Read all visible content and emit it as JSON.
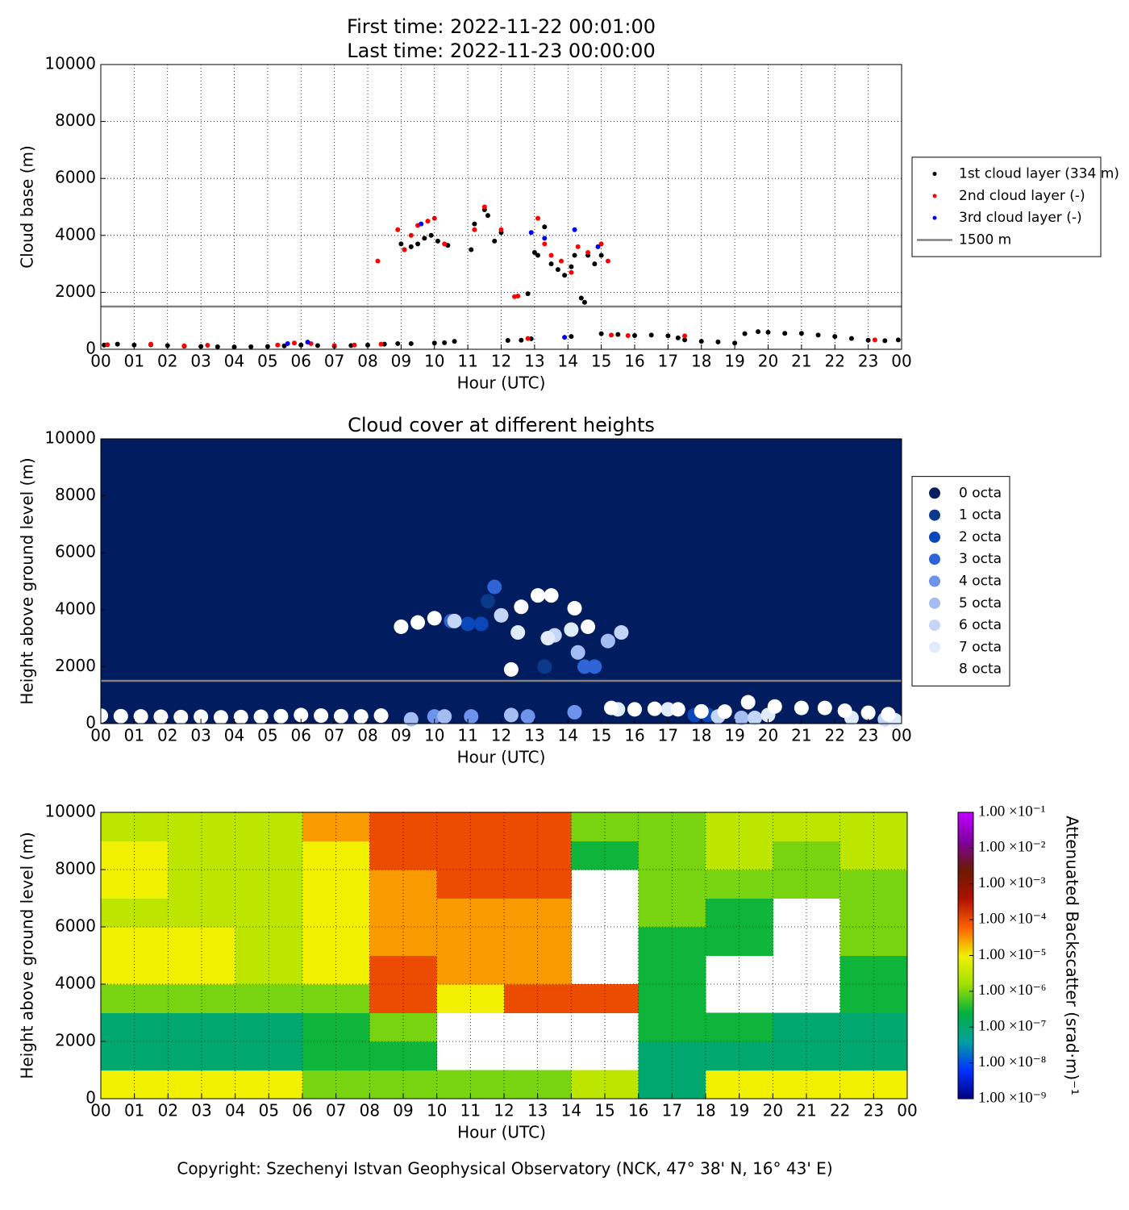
{
  "chart_data": [
    {
      "type": "scatter",
      "title": "First time: 2022-11-22 00:01:00",
      "subtitle": "Last time: 2022-11-23 00:00:00",
      "xlabel": "Hour (UTC)",
      "ylabel": "Cloud base (m)",
      "grid": true,
      "legend": "outside right",
      "background": "#ffffff",
      "xlim": [
        0,
        24
      ],
      "ylim": [
        0,
        10000
      ],
      "yticks": [
        0,
        2000,
        4000,
        6000,
        8000,
        10000
      ],
      "xticks": [
        {
          "value": 0,
          "label": "00"
        },
        {
          "value": 1,
          "label": "01"
        },
        {
          "value": 2,
          "label": "02"
        },
        {
          "value": 3,
          "label": "03"
        },
        {
          "value": 4,
          "label": "04"
        },
        {
          "value": 5,
          "label": "05"
        },
        {
          "value": 6,
          "label": "06"
        },
        {
          "value": 7,
          "label": "07"
        },
        {
          "value": 8,
          "label": "08"
        },
        {
          "value": 9,
          "label": "09"
        },
        {
          "value": 10,
          "label": "10"
        },
        {
          "value": 11,
          "label": "11"
        },
        {
          "value": 12,
          "label": "12"
        },
        {
          "value": 13,
          "label": "13"
        },
        {
          "value": 14,
          "label": "14"
        },
        {
          "value": 15,
          "label": "15"
        },
        {
          "value": 16,
          "label": "16"
        },
        {
          "value": 17,
          "label": "17"
        },
        {
          "value": 18,
          "label": "18"
        },
        {
          "value": 19,
          "label": "19"
        },
        {
          "value": 20,
          "label": "20"
        },
        {
          "value": 21,
          "label": "21"
        },
        {
          "value": 22,
          "label": "22"
        },
        {
          "value": 23,
          "label": "23"
        },
        {
          "value": 24,
          "label": "00"
        }
      ],
      "series": [
        {
          "name": "1st cloud layer (334 m)",
          "color": "#000000",
          "x": [
            0.1,
            0.5,
            1,
            1.5,
            2,
            2.5,
            3,
            3.5,
            4,
            4.5,
            5,
            5.5,
            6,
            6.5,
            7,
            7.5,
            8,
            8.5,
            8.9,
            9,
            9.1,
            9.3,
            9.5,
            9.7,
            9.9,
            10.1,
            10.4,
            9.3,
            10,
            10.3,
            10.6,
            11.1,
            11.2,
            11.5,
            11.6,
            11.8,
            12,
            12.2,
            12.6,
            12.9,
            12.8,
            13,
            13.1,
            13.3,
            13.5,
            13.7,
            13.9,
            14.1,
            14.2,
            14.4,
            14.5,
            14.6,
            14.8,
            15,
            14.1,
            15,
            15.5,
            16,
            16.5,
            17,
            17.3,
            17.5,
            18,
            18.5,
            19,
            19.3,
            19.7,
            20,
            20.5,
            21,
            21.5,
            22,
            22.5,
            23,
            23.5,
            23.9
          ],
          "values": [
            150,
            180,
            150,
            160,
            130,
            110,
            100,
            90,
            80,
            90,
            100,
            120,
            150,
            130,
            110,
            130,
            150,
            180,
            200,
            3700,
            3500,
            3600,
            3700,
            3900,
            4000,
            3800,
            3650,
            200,
            220,
            230,
            280,
            3500,
            4400,
            4900,
            4700,
            3800,
            4100,
            310,
            320,
            370,
            1950,
            3400,
            3300,
            4300,
            3000,
            2800,
            2600,
            2900,
            3300,
            1800,
            1650,
            3300,
            3000,
            3300,
            450,
            550,
            520,
            480,
            500,
            470,
            400,
            330,
            280,
            260,
            220,
            550,
            620,
            600,
            560,
            560,
            500,
            450,
            380,
            320,
            300,
            330
          ]
        },
        {
          "name": "2nd cloud layer (-)",
          "color": "#ff0000",
          "x": [
            0.2,
            1.5,
            2.5,
            3.2,
            5.3,
            5.8,
            6.3,
            7,
            7.6,
            8.3,
            8.4,
            8.9,
            9.1,
            9.3,
            9.5,
            9.8,
            10,
            10.3,
            11.2,
            11.5,
            12,
            12.4,
            12.5,
            12.8,
            13.1,
            13.3,
            13.5,
            13.8,
            14.1,
            14.3,
            14.6,
            15,
            15.2,
            15.3,
            15.8,
            17.5,
            23.2
          ],
          "values": [
            160,
            180,
            120,
            140,
            150,
            220,
            200,
            130,
            150,
            3100,
            180,
            4200,
            3500,
            4000,
            4350,
            4500,
            4600,
            3700,
            4200,
            5000,
            4200,
            1850,
            1870,
            380,
            4600,
            3700,
            3300,
            3100,
            2700,
            3600,
            3400,
            3700,
            3100,
            500,
            480,
            470,
            330
          ]
        },
        {
          "name": "3rd cloud layer (-)",
          "color": "#0000ff",
          "x": [
            5.6,
            6.2,
            9.6,
            12.9,
            13.3,
            13.9,
            14.2,
            14.9
          ],
          "values": [
            200,
            250,
            4400,
            4100,
            3900,
            420,
            4200,
            3600
          ]
        }
      ],
      "reference_line": {
        "name": "1500 m",
        "value": 1500,
        "color": "#808080"
      }
    },
    {
      "type": "scatter",
      "title": "Cloud cover at different heights",
      "xlabel": "Hour (UTC)",
      "ylabel": "Height above ground level (m)",
      "grid": false,
      "legend": "outside right",
      "background": "#021c60",
      "xlim": [
        0,
        24
      ],
      "ylim": [
        0,
        10000
      ],
      "yticks": [
        0,
        2000,
        4000,
        6000,
        8000,
        10000
      ],
      "xticks": [
        {
          "value": 0,
          "label": "00"
        },
        {
          "value": 1,
          "label": "01"
        },
        {
          "value": 2,
          "label": "02"
        },
        {
          "value": 3,
          "label": "03"
        },
        {
          "value": 4,
          "label": "04"
        },
        {
          "value": 5,
          "label": "05"
        },
        {
          "value": 6,
          "label": "06"
        },
        {
          "value": 7,
          "label": "07"
        },
        {
          "value": 8,
          "label": "08"
        },
        {
          "value": 9,
          "label": "09"
        },
        {
          "value": 10,
          "label": "10"
        },
        {
          "value": 11,
          "label": "11"
        },
        {
          "value": 12,
          "label": "12"
        },
        {
          "value": 13,
          "label": "13"
        },
        {
          "value": 14,
          "label": "14"
        },
        {
          "value": 15,
          "label": "15"
        },
        {
          "value": 16,
          "label": "16"
        },
        {
          "value": 17,
          "label": "17"
        },
        {
          "value": 18,
          "label": "18"
        },
        {
          "value": 19,
          "label": "19"
        },
        {
          "value": 20,
          "label": "20"
        },
        {
          "value": 21,
          "label": "21"
        },
        {
          "value": 22,
          "label": "22"
        },
        {
          "value": 23,
          "label": "23"
        },
        {
          "value": 24,
          "label": "00"
        }
      ],
      "series": [
        {
          "name": "0 octa",
          "color": "#08215e",
          "x": [],
          "values": []
        },
        {
          "name": "1 octa",
          "color": "#0b3a8a",
          "x": [
            11.6,
            13.3
          ],
          "values": [
            4300,
            2000
          ]
        },
        {
          "name": "2 octa",
          "color": "#0a47b8",
          "x": [
            11,
            11.4,
            17.8,
            18.2
          ],
          "values": [
            3500,
            3500,
            300,
            300
          ]
        },
        {
          "name": "3 octa",
          "color": "#2e64d6",
          "x": [
            10.5,
            11.8,
            14.5,
            14.8
          ],
          "values": [
            3600,
            4800,
            2000,
            2000
          ]
        },
        {
          "name": "4 octa",
          "color": "#6d93ec",
          "x": [
            10,
            11.1,
            12.8,
            14.2
          ],
          "values": [
            250,
            250,
            250,
            400
          ]
        },
        {
          "name": "5 octa",
          "color": "#a3bdf2",
          "x": [
            9.3,
            10.3,
            12.3,
            14.3,
            15.2,
            19.2
          ],
          "values": [
            150,
            250,
            300,
            2500,
            2900,
            200
          ]
        },
        {
          "name": "6 octa",
          "color": "#c3d6f7",
          "x": [
            10.6,
            12,
            13.6,
            15.6,
            18.5,
            19.6,
            23.5
          ],
          "values": [
            3600,
            3800,
            3100,
            3200,
            250,
            200,
            150
          ]
        },
        {
          "name": "7 octa",
          "color": "#e0ecfc",
          "x": [
            12.5,
            13.4,
            14.1,
            15.5,
            17,
            20,
            22.5,
            23.8
          ],
          "values": [
            3200,
            3000,
            3300,
            500,
            500,
            300,
            200,
            120
          ]
        },
        {
          "name": "8 octa",
          "color": "#ffffff",
          "x": [
            0,
            0.6,
            1.2,
            1.8,
            2.4,
            3,
            3.6,
            4.2,
            4.8,
            5.4,
            6,
            6.6,
            7.2,
            7.8,
            8.4,
            9,
            9.5,
            10,
            12.3,
            12.6,
            13.1,
            13.5,
            14.2,
            14.6,
            15.3,
            16,
            16.6,
            17.3,
            18,
            18.7,
            19.4,
            20.2,
            21,
            21.7,
            22.3,
            23,
            23.6
          ],
          "values": [
            280,
            260,
            250,
            240,
            230,
            240,
            220,
            230,
            240,
            260,
            300,
            280,
            260,
            250,
            280,
            3400,
            3550,
            3700,
            1900,
            4100,
            4500,
            4500,
            4050,
            3400,
            550,
            500,
            520,
            500,
            430,
            420,
            750,
            600,
            550,
            550,
            450,
            380,
            330
          ]
        }
      ],
      "reference_line": {
        "value": 1500,
        "color": "#808080"
      }
    },
    {
      "type": "heatmap",
      "xlabel": "Hour (UTC)",
      "ylabel": "Height above ground level (m)",
      "grid": true,
      "background": "#ffffff",
      "colorbar_label": "Attenuated Backscatter (srad·m)⁻¹",
      "zscale": "log",
      "clim": [
        1e-09,
        0.1
      ],
      "colormap": [
        "#000080",
        "#0030ff",
        "#00a0a0",
        "#00b040",
        "#a0e000",
        "#f0f000",
        "#ff6000",
        "#b01000",
        "#6a1a00",
        "#8000a0",
        "#c000ff"
      ],
      "cticks": [
        {
          "value": 1e-09,
          "label": "1.00 ×10⁻⁹"
        },
        {
          "value": 1e-08,
          "label": "1.00 ×10⁻⁸"
        },
        {
          "value": 1e-07,
          "label": "1.00 ×10⁻⁷"
        },
        {
          "value": 1e-06,
          "label": "1.00 ×10⁻⁶"
        },
        {
          "value": 1e-05,
          "label": "1.00 ×10⁻⁵"
        },
        {
          "value": 0.0001,
          "label": "1.00 ×10⁻⁴"
        },
        {
          "value": 0.001,
          "label": "1.00 ×10⁻³"
        },
        {
          "value": 0.01,
          "label": "1.00 ×10⁻²"
        },
        {
          "value": 0.1,
          "label": "1.00 ×10⁻¹"
        }
      ],
      "xlim": [
        0,
        24
      ],
      "ylim": [
        0,
        10000
      ],
      "yticks": [
        0,
        2000,
        4000,
        6000,
        8000,
        10000
      ],
      "xticks": [
        {
          "value": 0,
          "label": "00"
        },
        {
          "value": 1,
          "label": "01"
        },
        {
          "value": 2,
          "label": "02"
        },
        {
          "value": 3,
          "label": "03"
        },
        {
          "value": 4,
          "label": "04"
        },
        {
          "value": 5,
          "label": "05"
        },
        {
          "value": 6,
          "label": "06"
        },
        {
          "value": 7,
          "label": "07"
        },
        {
          "value": 8,
          "label": "08"
        },
        {
          "value": 9,
          "label": "09"
        },
        {
          "value": 10,
          "label": "10"
        },
        {
          "value": 11,
          "label": "11"
        },
        {
          "value": 12,
          "label": "12"
        },
        {
          "value": 13,
          "label": "13"
        },
        {
          "value": 14,
          "label": "14"
        },
        {
          "value": 15,
          "label": "15"
        },
        {
          "value": 16,
          "label": "16"
        },
        {
          "value": 17,
          "label": "17"
        },
        {
          "value": 18,
          "label": "18"
        },
        {
          "value": 19,
          "label": "19"
        },
        {
          "value": 20,
          "label": "20"
        },
        {
          "value": 21,
          "label": "21"
        },
        {
          "value": 22,
          "label": "22"
        },
        {
          "value": 23,
          "label": "23"
        },
        {
          "value": 24,
          "label": "00"
        }
      ],
      "x_edges": [
        0,
        2,
        4,
        6,
        8,
        10,
        12,
        14,
        16,
        18,
        20,
        22,
        24
      ],
      "y_edges": [
        0,
        1000,
        2000,
        3000,
        4000,
        5000,
        6000,
        7000,
        8000,
        9000,
        10000
      ],
      "values": [
        [
          1e-05,
          1e-05,
          1e-05,
          1e-06,
          1e-06,
          1e-06,
          1e-06,
          3e-06,
          1e-07,
          1e-05,
          1e-05,
          1e-05
        ],
        [
          1e-07,
          1e-07,
          1e-07,
          3e-07,
          3e-07,
          null,
          null,
          null,
          1e-07,
          1e-07,
          1e-07,
          1e-07
        ],
        [
          1e-07,
          1e-07,
          1e-07,
          3e-07,
          1e-06,
          null,
          null,
          null,
          3e-07,
          3e-07,
          1e-07,
          1e-07
        ],
        [
          1e-06,
          1e-06,
          1e-06,
          1e-06,
          0.0001,
          1e-05,
          0.0001,
          0.0001,
          3e-07,
          null,
          null,
          3e-07
        ],
        [
          1e-05,
          1e-05,
          3e-06,
          1e-05,
          0.0001,
          3e-05,
          3e-05,
          null,
          3e-07,
          null,
          null,
          3e-07
        ],
        [
          1e-05,
          1e-05,
          3e-06,
          1e-05,
          3e-05,
          3e-05,
          3e-05,
          null,
          3e-07,
          3e-07,
          null,
          1e-06
        ],
        [
          3e-06,
          3e-06,
          3e-06,
          1e-05,
          3e-05,
          3e-05,
          3e-05,
          null,
          1e-06,
          3e-07,
          null,
          1e-06
        ],
        [
          1e-05,
          3e-06,
          3e-06,
          1e-05,
          3e-05,
          0.0001,
          0.0001,
          null,
          1e-06,
          1e-06,
          1e-06,
          1e-06
        ],
        [
          1e-05,
          3e-06,
          3e-06,
          1e-05,
          0.0001,
          0.0001,
          0.0001,
          3e-07,
          1e-06,
          3e-06,
          1e-06,
          3e-06
        ],
        [
          3e-06,
          3e-06,
          3e-06,
          3e-05,
          0.0001,
          0.0001,
          0.0001,
          1e-06,
          1e-06,
          3e-06,
          3e-06,
          3e-06
        ]
      ]
    }
  ],
  "footer": "Copyright: Szechenyi Istvan Geophysical Observatory (NCK, 47° 38' N, 16° 43' E)"
}
